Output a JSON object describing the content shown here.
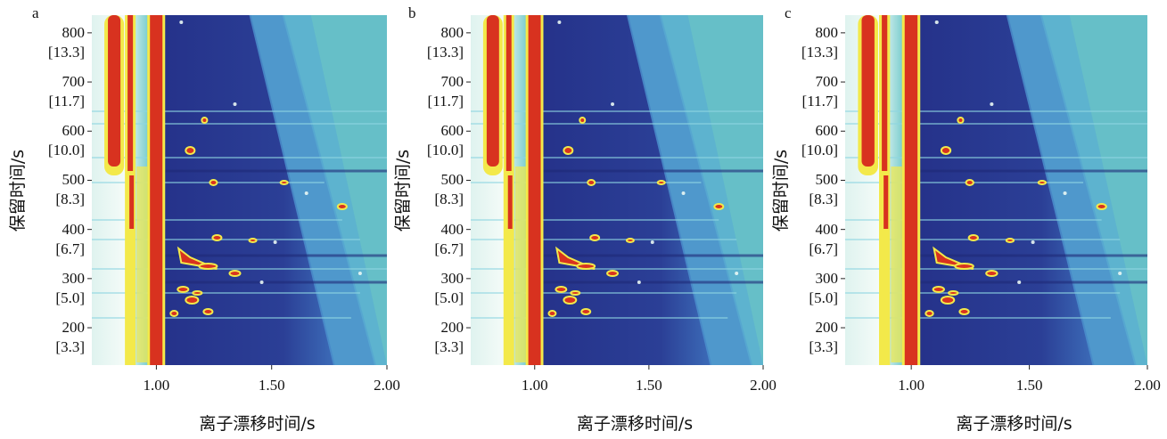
{
  "chart_data": [
    {
      "type": "heatmap",
      "panel_label": "a",
      "xlabel": "离子漂移时间/s",
      "ylabel": "保留时间/s",
      "xlim": [
        0.72,
        2.0
      ],
      "ylim": [
        124,
        836
      ],
      "xticks": [
        {
          "value": 1.0,
          "label": "1.00"
        },
        {
          "value": 1.5,
          "label": "1.50"
        },
        {
          "value": 2.0,
          "label": "2.00"
        }
      ],
      "yticks": [
        {
          "value": 800,
          "label": "800\n[13.3]"
        },
        {
          "value": 700,
          "label": "700\n[11.7]"
        },
        {
          "value": 600,
          "label": "600\n[10.0]"
        },
        {
          "value": 500,
          "label": "500\n[8.3]"
        },
        {
          "value": 400,
          "label": "400\n[6.7]"
        },
        {
          "value": 300,
          "label": "300\n[5.0]"
        },
        {
          "value": 200,
          "label": "200\n[3.3]"
        }
      ]
    },
    {
      "type": "heatmap",
      "panel_label": "b",
      "xlabel": "离子漂移时间/s",
      "ylabel": "保留时间/s",
      "xlim": [
        0.72,
        2.0
      ],
      "ylim": [
        124,
        836
      ],
      "xticks": [
        {
          "value": 1.0,
          "label": "1.00"
        },
        {
          "value": 1.5,
          "label": "1.50"
        },
        {
          "value": 2.0,
          "label": "2.00"
        }
      ],
      "yticks": [
        {
          "value": 800,
          "label": "800\n[13.3]"
        },
        {
          "value": 700,
          "label": "700\n[11.7]"
        },
        {
          "value": 600,
          "label": "600\n[10.0]"
        },
        {
          "value": 500,
          "label": "500\n[8.3]"
        },
        {
          "value": 400,
          "label": "400\n[6.7]"
        },
        {
          "value": 300,
          "label": "300\n[5.0]"
        },
        {
          "value": 200,
          "label": "200\n[3.3]"
        }
      ]
    },
    {
      "type": "heatmap",
      "panel_label": "c",
      "xlabel": "离子漂移时间/s",
      "ylabel": "保留时间/s",
      "xlim": [
        0.72,
        2.0
      ],
      "ylim": [
        124,
        836
      ],
      "xticks": [
        {
          "value": 1.0,
          "label": "1.00"
        },
        {
          "value": 1.5,
          "label": "1.50"
        },
        {
          "value": 2.0,
          "label": "2.00"
        }
      ],
      "yticks": [
        {
          "value": 800,
          "label": "800\n[13.3]"
        },
        {
          "value": 700,
          "label": "700\n[11.7]"
        },
        {
          "value": 600,
          "label": "600\n[10.0]"
        },
        {
          "value": 500,
          "label": "500\n[8.3]"
        },
        {
          "value": 400,
          "label": "400\n[6.7]"
        },
        {
          "value": 300,
          "label": "300\n[5.0]"
        },
        {
          "value": 200,
          "label": "200\n[3.3]"
        }
      ]
    }
  ]
}
